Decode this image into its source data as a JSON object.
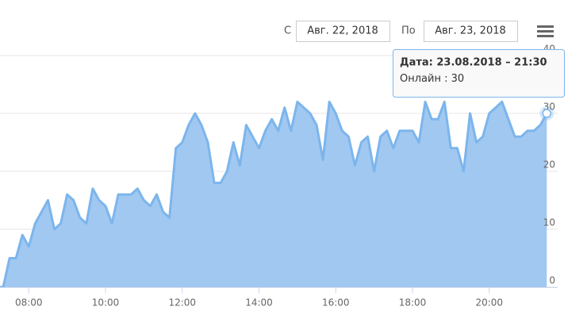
{
  "chart_data": {
    "type": "area",
    "x": [
      "07:10",
      "07:20",
      "07:30",
      "07:40",
      "07:50",
      "08:00",
      "08:10",
      "08:20",
      "08:30",
      "08:40",
      "08:50",
      "09:00",
      "09:10",
      "09:20",
      "09:30",
      "09:40",
      "09:50",
      "10:00",
      "10:10",
      "10:20",
      "10:30",
      "10:40",
      "10:50",
      "11:00",
      "11:10",
      "11:20",
      "11:30",
      "11:40",
      "11:50",
      "12:00",
      "12:10",
      "12:20",
      "12:30",
      "12:40",
      "12:50",
      "13:00",
      "13:10",
      "13:20",
      "13:30",
      "13:40",
      "13:50",
      "14:00",
      "14:10",
      "14:20",
      "14:30",
      "14:40",
      "14:50",
      "15:00",
      "15:10",
      "15:20",
      "15:30",
      "15:40",
      "15:50",
      "16:00",
      "16:10",
      "16:20",
      "16:30",
      "16:40",
      "16:50",
      "17:00",
      "17:10",
      "17:20",
      "17:30",
      "17:40",
      "17:50",
      "18:00",
      "18:10",
      "18:20",
      "18:30",
      "18:40",
      "18:50",
      "19:00",
      "19:10",
      "19:20",
      "19:30",
      "19:40",
      "19:50",
      "20:00",
      "20:10",
      "20:20",
      "20:30",
      "20:40",
      "20:50",
      "21:00",
      "21:10",
      "21:20",
      "21:30"
    ],
    "series": [
      {
        "name": "Онлайн",
        "color": "#7cb5ec",
        "fill": "#a1c8f0",
        "values": [
          0,
          0,
          5,
          5,
          9,
          7,
          11,
          13,
          15,
          10,
          11,
          16,
          15,
          12,
          11,
          17,
          15,
          14,
          11,
          16,
          16,
          16,
          17,
          15,
          14,
          16,
          13,
          12,
          24,
          25,
          28,
          30,
          28,
          25,
          18,
          18,
          20,
          25,
          21,
          28,
          26,
          24,
          27,
          29,
          27,
          31,
          27,
          32,
          31,
          30,
          28,
          22,
          32,
          30,
          27,
          26,
          21,
          25,
          26,
          20,
          26,
          27,
          24,
          27,
          27,
          27,
          25,
          32,
          29,
          29,
          32,
          24,
          24,
          20,
          30,
          25,
          26,
          30,
          31,
          32,
          29,
          26,
          26,
          27,
          27,
          28,
          30
        ]
      }
    ],
    "xlim": [
      "07:15",
      "21:47"
    ],
    "xticks": [
      "08:00",
      "10:00",
      "12:00",
      "14:00",
      "16:00",
      "18:00",
      "20:00"
    ],
    "ylim": [
      0,
      40
    ],
    "yticks": [
      0,
      10,
      20,
      30,
      40
    ],
    "grid": true,
    "tooltip": {
      "header": "Дата: 23.08.2018 – 21:30",
      "separator": ":"
    }
  },
  "range_selector": {
    "from_label": "С",
    "from": "Авг. 22, 2018",
    "to_label": "По",
    "to": "Авг. 23, 2018"
  }
}
